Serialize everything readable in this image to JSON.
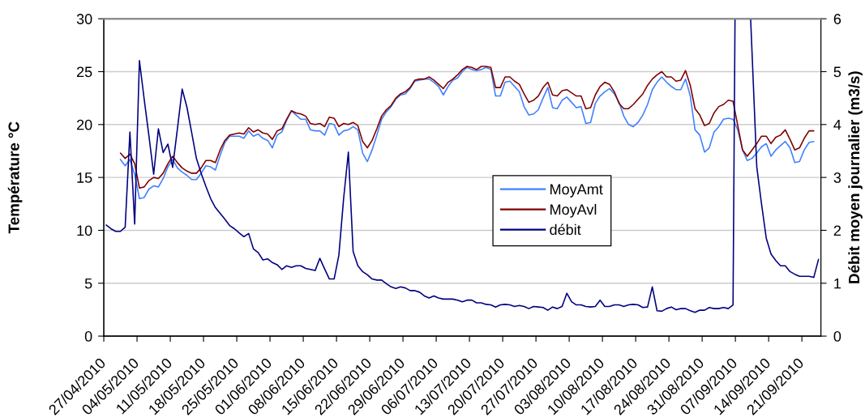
{
  "chart_data": {
    "type": "line",
    "x": [
      "2010-04-30T12:00",
      "2010-05-01T12:00",
      "2010-05-02T12:00",
      "2010-05-03T12:00",
      "2010-05-04T12:00",
      "2010-05-05T12:00",
      "2010-05-06T12:00",
      "2010-05-07T12:00",
      "2010-05-08T12:00",
      "2010-05-09T12:00",
      "2010-05-10T12:00",
      "2010-05-11T12:00",
      "2010-05-12T12:00",
      "2010-05-13T12:00",
      "2010-05-14T12:00",
      "2010-05-15T12:00",
      "2010-05-16T12:00",
      "2010-05-17T12:00",
      "2010-05-18T12:00",
      "2010-05-19T12:00",
      "2010-05-20T12:00",
      "2010-05-21T12:00",
      "2010-05-22T12:00",
      "2010-05-23T12:00",
      "2010-05-24T12:00",
      "2010-05-25T12:00",
      "2010-05-26T12:00",
      "2010-05-27T12:00",
      "2010-05-28T12:00",
      "2010-05-29T12:00",
      "2010-05-30T12:00",
      "2010-05-31T12:00",
      "2010-06-01T12:00",
      "2010-06-02T12:00",
      "2010-06-03T12:00",
      "2010-06-04T12:00",
      "2010-06-05T12:00",
      "2010-06-06T12:00",
      "2010-06-07T12:00",
      "2010-06-08T12:00",
      "2010-06-09T12:00",
      "2010-06-10T12:00",
      "2010-06-11T12:00",
      "2010-06-12T12:00",
      "2010-06-13T12:00",
      "2010-06-14T12:00",
      "2010-06-15T12:00",
      "2010-06-16T12:00",
      "2010-06-17T12:00",
      "2010-06-18T12:00",
      "2010-06-19T12:00",
      "2010-06-20T12:00",
      "2010-06-21T12:00",
      "2010-06-22T12:00",
      "2010-06-23T12:00",
      "2010-06-24T12:00",
      "2010-06-25T12:00",
      "2010-06-26T12:00",
      "2010-06-27T12:00",
      "2010-06-28T12:00",
      "2010-06-29T12:00",
      "2010-06-30T12:00",
      "2010-07-01T12:00",
      "2010-07-02T12:00",
      "2010-07-03T12:00",
      "2010-07-04T12:00",
      "2010-07-05T12:00",
      "2010-07-06T12:00",
      "2010-07-07T12:00",
      "2010-07-08T12:00",
      "2010-07-09T12:00",
      "2010-07-10T12:00",
      "2010-07-11T12:00",
      "2010-07-12T12:00",
      "2010-07-13T12:00",
      "2010-07-14T12:00",
      "2010-07-15T12:00",
      "2010-07-16T12:00",
      "2010-07-17T12:00",
      "2010-07-18T12:00",
      "2010-07-19T12:00",
      "2010-07-20T12:00",
      "2010-07-21T12:00",
      "2010-07-22T12:00",
      "2010-07-23T12:00",
      "2010-07-24T12:00",
      "2010-07-25T12:00",
      "2010-07-26T12:00",
      "2010-07-27T12:00",
      "2010-07-28T12:00",
      "2010-07-29T12:00",
      "2010-07-30T12:00",
      "2010-07-31T12:00",
      "2010-08-01T12:00",
      "2010-08-02T12:00",
      "2010-08-03T12:00",
      "2010-08-04T12:00",
      "2010-08-05T12:00",
      "2010-08-06T12:00",
      "2010-08-07T12:00",
      "2010-08-08T12:00",
      "2010-08-09T12:00",
      "2010-08-10T12:00",
      "2010-08-11T12:00",
      "2010-08-12T12:00",
      "2010-08-13T12:00",
      "2010-08-14T12:00",
      "2010-08-15T12:00",
      "2010-08-16T12:00",
      "2010-08-17T12:00",
      "2010-08-18T12:00",
      "2010-08-19T12:00",
      "2010-08-20T12:00",
      "2010-08-21T12:00",
      "2010-08-22T12:00",
      "2010-08-23T12:00",
      "2010-08-24T12:00",
      "2010-08-25T12:00",
      "2010-08-26T12:00",
      "2010-08-27T12:00",
      "2010-08-28T12:00",
      "2010-08-29T12:00",
      "2010-08-30T12:00",
      "2010-08-31T12:00",
      "2010-09-01T12:00",
      "2010-09-02T12:00",
      "2010-09-03T12:00",
      "2010-09-04T12:00",
      "2010-09-05T12:00",
      "2010-09-06T12:00",
      "2010-09-07T12:00",
      "2010-09-08T12:00",
      "2010-09-09T12:00",
      "2010-09-10T12:00",
      "2010-09-11T12:00",
      "2010-09-12T12:00",
      "2010-09-13T12:00",
      "2010-09-14T12:00",
      "2010-09-15T12:00",
      "2010-09-16T12:00",
      "2010-09-17T12:00",
      "2010-09-18T12:00",
      "2010-09-19T12:00",
      "2010-09-20T12:00",
      "2010-09-21T12:00",
      "2010-09-22T12:00",
      "2010-09-23T12:00"
    ],
    "xlim": [
      "2010-04-27",
      "2010-09-25"
    ],
    "xticks": [
      {
        "value": "2010-04-27",
        "label": "27/04/2010"
      },
      {
        "value": "2010-05-04",
        "label": "04/05/2010"
      },
      {
        "value": "2010-05-11",
        "label": "11/05/2010"
      },
      {
        "value": "2010-05-18",
        "label": "18/05/2010"
      },
      {
        "value": "2010-05-25",
        "label": "25/05/2010"
      },
      {
        "value": "2010-06-01",
        "label": "01/06/2010"
      },
      {
        "value": "2010-06-08",
        "label": "08/06/2010"
      },
      {
        "value": "2010-06-15",
        "label": "15/06/2010"
      },
      {
        "value": "2010-06-22",
        "label": "22/06/2010"
      },
      {
        "value": "2010-06-29",
        "label": "29/06/2010"
      },
      {
        "value": "2010-07-06",
        "label": "06/07/2010"
      },
      {
        "value": "2010-07-13",
        "label": "13/07/2010"
      },
      {
        "value": "2010-07-20",
        "label": "20/07/2010"
      },
      {
        "value": "2010-07-27",
        "label": "27/07/2010"
      },
      {
        "value": "2010-08-03",
        "label": "03/08/2010"
      },
      {
        "value": "2010-08-10",
        "label": "10/08/2010"
      },
      {
        "value": "2010-08-17",
        "label": "17/08/2010"
      },
      {
        "value": "2010-08-24",
        "label": "24/08/2010"
      },
      {
        "value": "2010-08-31",
        "label": "31/08/2010"
      },
      {
        "value": "2010-09-07",
        "label": "07/09/2010"
      },
      {
        "value": "2010-09-14",
        "label": "14/09/2010"
      },
      {
        "value": "2010-09-21",
        "label": "21/09/2010"
      }
    ],
    "ylabel": "Température °C",
    "y2label": "Débit moyen journalier (m3/s)",
    "ylim": [
      0,
      30
    ],
    "yticks": [
      0,
      5,
      10,
      15,
      20,
      25,
      30
    ],
    "y2lim": [
      0,
      6
    ],
    "y2ticks": [
      0,
      1,
      2,
      3,
      4,
      5,
      6
    ],
    "grid": "y",
    "legend": "center",
    "series": [
      {
        "name": "MoyAmt",
        "color": "#4080ff",
        "values": [
          16.7,
          16.1,
          16.7,
          15.3,
          13.0,
          13.1,
          13.9,
          14.2,
          14.1,
          14.9,
          16.0,
          16.7,
          15.9,
          15.5,
          15.2,
          14.8,
          14.8,
          15.4,
          16.1,
          16.0,
          15.7,
          17.1,
          18.3,
          18.9,
          18.9,
          18.9,
          18.7,
          19.4,
          18.9,
          19.1,
          18.7,
          18.5,
          17.8,
          19.0,
          19.3,
          20.4,
          21.3,
          20.9,
          20.5,
          20.5,
          19.5,
          19.4,
          19.4,
          19.0,
          20.1,
          20.0,
          19.0,
          19.4,
          19.5,
          19.8,
          19.5,
          17.3,
          16.5,
          17.6,
          19.0,
          20.5,
          21.2,
          21.7,
          22.4,
          22.8,
          22.9,
          23.4,
          24.1,
          24.2,
          24.3,
          24.3,
          24.0,
          23.6,
          22.8,
          23.6,
          24.2,
          24.4,
          25.0,
          25.4,
          25.2,
          25.1,
          25.2,
          25.4,
          25.2,
          22.7,
          22.7,
          24.0,
          24.1,
          23.6,
          23.1,
          21.7,
          20.9,
          21.0,
          21.4,
          22.5,
          23.5,
          21.6,
          21.5,
          22.3,
          22.6,
          22.1,
          21.6,
          21.7,
          20.1,
          20.2,
          22.0,
          22.7,
          23.1,
          23.4,
          22.9,
          22.1,
          20.8,
          20.0,
          19.8,
          20.2,
          20.9,
          21.9,
          23.3,
          24.0,
          24.5,
          24.0,
          23.6,
          23.3,
          23.3,
          24.3,
          22.7,
          19.5,
          19.0,
          17.4,
          17.8,
          19.3,
          19.8,
          20.5,
          20.6,
          20.5,
          19.5,
          17.6,
          16.6,
          16.8,
          17.3,
          17.9,
          18.2,
          17.0,
          17.6,
          18.0,
          18.4,
          17.8,
          16.4,
          16.5,
          17.6,
          18.3,
          18.4
        ]
      },
      {
        "name": "MoyAvl",
        "color": "#800000",
        "values": [
          17.3,
          16.8,
          17.2,
          16.3,
          14.0,
          14.1,
          14.7,
          15.0,
          14.9,
          15.4,
          16.3,
          17.0,
          16.4,
          15.9,
          15.6,
          15.4,
          15.4,
          15.9,
          16.6,
          16.6,
          16.4,
          17.6,
          18.5,
          19.0,
          19.1,
          19.2,
          19.1,
          19.7,
          19.3,
          19.5,
          19.2,
          19.1,
          18.6,
          19.4,
          19.6,
          20.5,
          21.3,
          21.1,
          21.0,
          20.8,
          20.1,
          20.0,
          20.1,
          19.8,
          20.7,
          20.6,
          19.8,
          20.1,
          20.0,
          20.2,
          19.9,
          18.4,
          17.8,
          18.5,
          19.6,
          20.8,
          21.4,
          21.8,
          22.5,
          22.9,
          23.1,
          23.5,
          24.2,
          24.3,
          24.3,
          24.5,
          24.2,
          23.8,
          23.4,
          24.0,
          24.3,
          24.7,
          25.2,
          25.5,
          25.4,
          25.2,
          25.5,
          25.5,
          25.4,
          23.5,
          23.5,
          24.5,
          24.5,
          24.1,
          23.8,
          22.9,
          22.1,
          22.3,
          22.7,
          23.5,
          24.0,
          22.8,
          22.7,
          23.2,
          23.3,
          23.0,
          22.7,
          22.7,
          21.5,
          21.6,
          22.8,
          23.6,
          24.0,
          23.8,
          23.1,
          22.0,
          21.5,
          21.5,
          21.9,
          22.4,
          22.9,
          23.7,
          24.3,
          24.7,
          25.0,
          24.5,
          24.5,
          24.1,
          24.2,
          25.1,
          23.7,
          21.5,
          20.9,
          19.9,
          20.1,
          21.1,
          21.7,
          21.9,
          22.3,
          22.2,
          19.9,
          17.6,
          17.0,
          17.6,
          18.2,
          18.9,
          18.9,
          18.2,
          18.8,
          19.0,
          19.5,
          18.6,
          17.6,
          17.8,
          18.7,
          19.4,
          19.4
        ]
      },
      {
        "name": "débit",
        "color": "#000080",
        "axis": "y2",
        "x": [
          "2010-04-27T12:00",
          "2010-04-28T12:00",
          "2010-04-29T12:00",
          "2010-04-30T12:00",
          "2010-05-01T12:00",
          "2010-05-02T12:00",
          "2010-05-03T12:00",
          "2010-05-04T12:00",
          "2010-05-05T12:00",
          "2010-05-06T12:00",
          "2010-05-07T12:00",
          "2010-05-08T12:00",
          "2010-05-09T12:00",
          "2010-05-10T12:00",
          "2010-05-11T12:00",
          "2010-05-12T12:00",
          "2010-05-13T12:00",
          "2010-05-14T12:00",
          "2010-05-15T12:00",
          "2010-05-16T12:00",
          "2010-05-17T12:00",
          "2010-05-18T12:00",
          "2010-05-19T12:00",
          "2010-05-20T12:00",
          "2010-05-21T12:00",
          "2010-05-22T12:00",
          "2010-05-23T12:00",
          "2010-05-24T12:00",
          "2010-05-25T12:00",
          "2010-05-26T12:00",
          "2010-05-27T12:00",
          "2010-05-28T12:00",
          "2010-05-29T12:00",
          "2010-05-30T12:00",
          "2010-05-31T12:00",
          "2010-06-01T12:00",
          "2010-06-02T12:00",
          "2010-06-03T12:00",
          "2010-06-04T12:00",
          "2010-06-05T12:00",
          "2010-06-06T12:00",
          "2010-06-07T12:00",
          "2010-06-08T12:00",
          "2010-06-09T12:00",
          "2010-06-10T12:00",
          "2010-06-11T12:00",
          "2010-06-12T12:00",
          "2010-06-13T12:00",
          "2010-06-14T12:00",
          "2010-06-15T12:00",
          "2010-06-16T12:00",
          "2010-06-17T12:00",
          "2010-06-18T12:00",
          "2010-06-19T12:00",
          "2010-06-20T12:00",
          "2010-06-21T12:00",
          "2010-06-22T12:00",
          "2010-06-23T12:00",
          "2010-06-24T12:00",
          "2010-06-25T12:00",
          "2010-06-26T12:00",
          "2010-06-27T12:00",
          "2010-06-28T12:00",
          "2010-06-29T12:00",
          "2010-06-30T12:00",
          "2010-07-01T12:00",
          "2010-07-02T12:00",
          "2010-07-03T12:00",
          "2010-07-04T12:00",
          "2010-07-05T12:00",
          "2010-07-06T12:00",
          "2010-07-07T12:00",
          "2010-07-08T12:00",
          "2010-07-09T12:00",
          "2010-07-10T12:00",
          "2010-07-11T12:00",
          "2010-07-12T12:00",
          "2010-07-13T12:00",
          "2010-07-14T12:00",
          "2010-07-15T12:00",
          "2010-07-16T12:00",
          "2010-07-17T12:00",
          "2010-07-18T12:00",
          "2010-07-19T12:00",
          "2010-07-20T12:00",
          "2010-07-21T12:00",
          "2010-07-22T12:00",
          "2010-07-23T12:00",
          "2010-07-24T12:00",
          "2010-07-25T12:00",
          "2010-07-26T12:00",
          "2010-07-27T12:00",
          "2010-07-28T12:00",
          "2010-07-29T12:00",
          "2010-07-30T12:00",
          "2010-07-31T12:00",
          "2010-08-01T12:00",
          "2010-08-02T12:00",
          "2010-08-03T12:00",
          "2010-08-04T12:00",
          "2010-08-05T12:00",
          "2010-08-06T12:00",
          "2010-08-07T12:00",
          "2010-08-08T12:00",
          "2010-08-09T12:00",
          "2010-08-10T12:00",
          "2010-08-11T12:00",
          "2010-08-12T12:00",
          "2010-08-13T12:00",
          "2010-08-14T12:00",
          "2010-08-15T12:00",
          "2010-08-16T12:00",
          "2010-08-17T12:00",
          "2010-08-18T12:00",
          "2010-08-19T12:00",
          "2010-08-20T12:00",
          "2010-08-21T12:00",
          "2010-08-22T12:00",
          "2010-08-23T12:00",
          "2010-08-24T12:00",
          "2010-08-25T12:00",
          "2010-08-26T12:00",
          "2010-08-27T12:00",
          "2010-08-28T12:00",
          "2010-08-29T12:00",
          "2010-08-30T12:00",
          "2010-08-31T12:00",
          "2010-09-01T12:00",
          "2010-09-02T12:00",
          "2010-09-03T12:00",
          "2010-09-04T12:00",
          "2010-09-05T12:00",
          "2010-09-06T12:00",
          "2010-09-06T22:00",
          null,
          "2010-09-10T05:00",
          "2010-09-11T12:00",
          "2010-09-12T12:00",
          "2010-09-13T12:00",
          "2010-09-14T12:00",
          "2010-09-15T12:00",
          "2010-09-16T12:00",
          "2010-09-17T12:00",
          "2010-09-18T12:00",
          "2010-09-19T12:00",
          "2010-09-20T12:00",
          "2010-09-21T12:00",
          "2010-09-22T12:00",
          "2010-09-23T12:00",
          "2010-09-24T12:00"
        ],
        "values": [
          2.1,
          2.03,
          1.98,
          1.98,
          2.06,
          3.86,
          2.12,
          5.21,
          4.48,
          3.79,
          3.06,
          3.92,
          3.47,
          3.63,
          3.19,
          3.92,
          4.67,
          4.33,
          3.85,
          3.36,
          3.08,
          2.83,
          2.6,
          2.43,
          2.32,
          2.21,
          2.09,
          2.03,
          1.95,
          1.88,
          1.94,
          1.65,
          1.58,
          1.44,
          1.46,
          1.39,
          1.35,
          1.26,
          1.33,
          1.3,
          1.33,
          1.33,
          1.28,
          1.26,
          1.24,
          1.47,
          1.27,
          1.08,
          1.08,
          1.53,
          2.6,
          3.48,
          1.6,
          1.33,
          1.22,
          1.16,
          1.08,
          1.06,
          1.06,
          0.99,
          0.93,
          0.9,
          0.93,
          0.91,
          0.86,
          0.86,
          0.83,
          0.76,
          0.72,
          0.76,
          0.72,
          0.7,
          0.7,
          0.7,
          0.68,
          0.65,
          0.68,
          0.68,
          0.63,
          0.63,
          0.6,
          0.59,
          0.55,
          0.59,
          0.6,
          0.59,
          0.56,
          0.58,
          0.56,
          0.52,
          0.56,
          0.55,
          0.54,
          0.49,
          0.55,
          0.52,
          0.56,
          0.81,
          0.65,
          0.59,
          0.59,
          0.56,
          0.55,
          0.56,
          0.68,
          0.56,
          0.56,
          0.59,
          0.59,
          0.56,
          0.59,
          0.6,
          0.59,
          0.54,
          0.55,
          0.93,
          0.48,
          0.47,
          0.52,
          0.55,
          0.5,
          0.52,
          0.52,
          0.48,
          0.45,
          0.49,
          0.49,
          0.54,
          0.52,
          0.52,
          0.54,
          0.52,
          0.59,
          6,
          null,
          6,
          3.2,
          2.5,
          1.85,
          1.55,
          1.43,
          1.33,
          1.33,
          1.22,
          1.17,
          1.13,
          1.13,
          1.13,
          1.11,
          1.45
        ]
      }
    ]
  }
}
